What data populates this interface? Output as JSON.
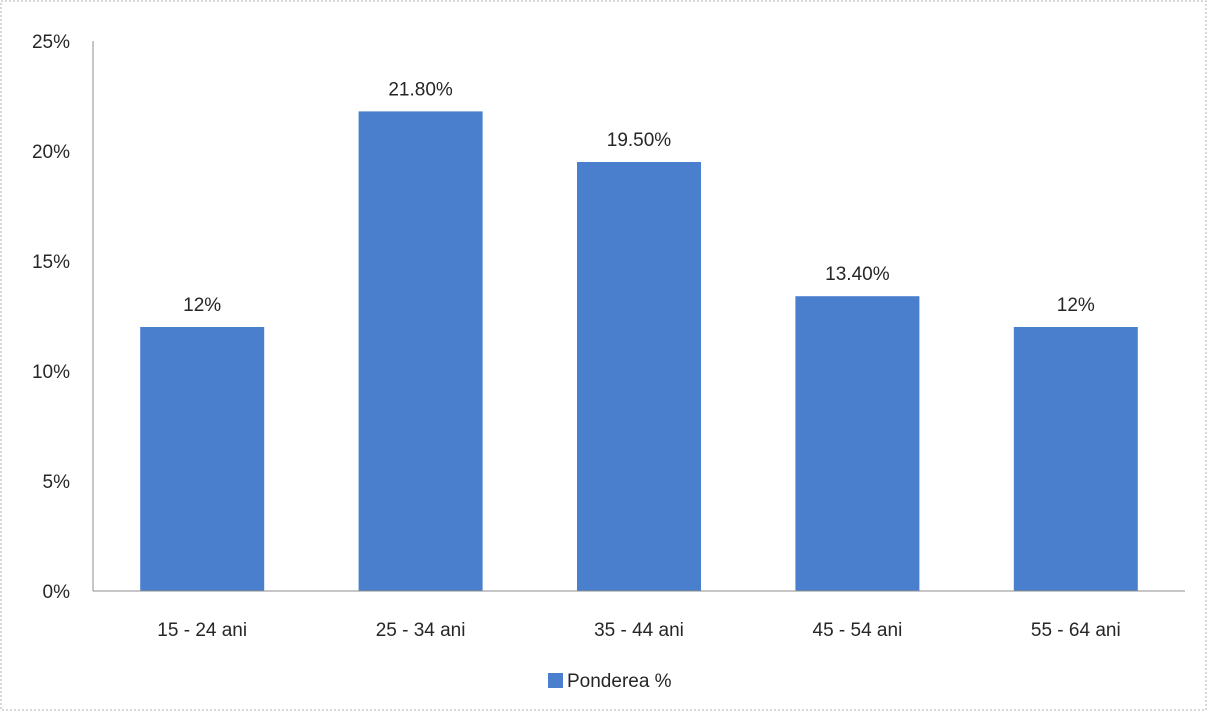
{
  "chart_data": {
    "type": "bar",
    "categories": [
      "15 - 24 ani",
      "25 - 34 ani",
      "35 - 44 ani",
      "45 - 54 ani",
      "55 - 64 ani"
    ],
    "series": [
      {
        "name": "Ponderea %",
        "values": [
          12,
          21.8,
          19.5,
          13.4,
          12
        ],
        "data_labels": [
          "12%",
          "21.80%",
          "19.50%",
          "13.40%",
          "12%"
        ],
        "color": "#4a7fce"
      }
    ],
    "title": "",
    "xlabel": "",
    "ylabel": "",
    "ylim": [
      0,
      25
    ],
    "yticks": [
      0,
      5,
      10,
      15,
      20,
      25
    ],
    "ytick_labels": [
      "0%",
      "5%",
      "10%",
      "15%",
      "20%",
      "25%"
    ],
    "grid": false,
    "legend": "bottom-center"
  }
}
